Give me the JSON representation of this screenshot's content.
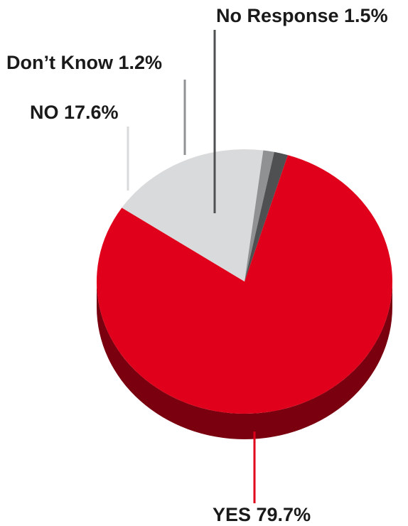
{
  "chart_data": {
    "type": "pie",
    "title": "",
    "start_angle_deg": -73,
    "slices": [
      {
        "label": "YES",
        "value": 79.7,
        "display": "YES 79.7%",
        "color": "#e0001b",
        "side_color": "#7a000f",
        "leader_color": "#e0001b"
      },
      {
        "label": "NO",
        "value": 17.6,
        "display": "NO 17.6%",
        "color": "#d9dadb",
        "side_color": "#8e8f91",
        "leader_color": "#d9dadb"
      },
      {
        "label": "Don’t Know",
        "value": 1.2,
        "display": "Don’t Know 1.2%",
        "color": "#8f9193",
        "side_color": "#5a5c5e",
        "leader_color": "#8f9193"
      },
      {
        "label": "No Response",
        "value": 1.5,
        "display": "No Response 1.5%",
        "color": "#4e5052",
        "side_color": "#2e3032",
        "leader_color": "#4e5052"
      }
    ]
  }
}
